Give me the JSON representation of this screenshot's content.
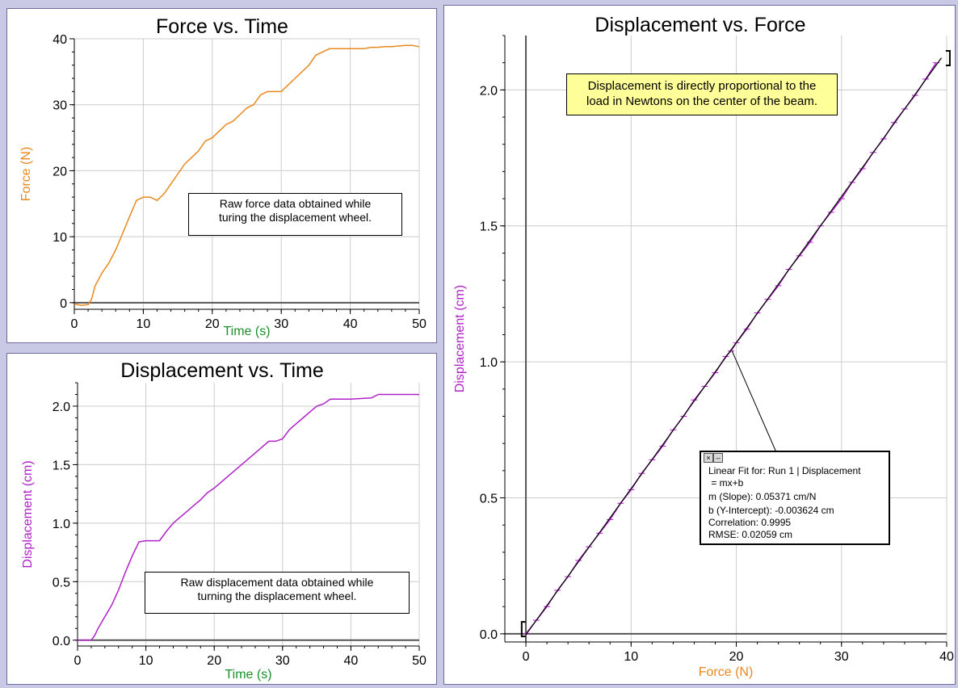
{
  "colors": {
    "force": "#e8891e",
    "displacement": "#b021c9",
    "fit": "#000000",
    "grid": "#cccccc",
    "note_yellow": "#ffff99",
    "background": "#c9c9e6"
  },
  "annotations": {
    "force_time": "Raw force data obtained while\nturing the displacement wheel.",
    "disp_time": "Raw displacement data obtained while\nturning the displacement wheel.",
    "disp_force": "Displacement is directly proportional to the\nload in Newtons on the center of the beam."
  },
  "fit_box": {
    "close_icon": "close-icon",
    "minimize_icon": "minimize-icon",
    "line1": "Linear Fit for: Run 1 | Displacement",
    "line2": " = mx+b",
    "slope": "m (Slope): 0.05371 cm/N",
    "intercept": "b (Y-Intercept): -0.003624 cm",
    "correlation": "Correlation: 0.9995",
    "rmse": "RMSE: 0.02059 cm"
  },
  "chart_data": [
    {
      "type": "line",
      "title": "Force vs. Time",
      "xlabel": "Time (s)",
      "ylabel": "Force (N)",
      "xlim": [
        0,
        50
      ],
      "ylim": [
        -1,
        40
      ],
      "xticks": [
        0,
        10,
        20,
        30,
        40,
        50
      ],
      "yticks": [
        0,
        10,
        20,
        30,
        40
      ],
      "grid": true,
      "series": [
        {
          "x": [
            0,
            1,
            2,
            2.5,
            3,
            4,
            5,
            6,
            7,
            8,
            9,
            10,
            11,
            12,
            13,
            14,
            15,
            16,
            17,
            18,
            19,
            20,
            21,
            22,
            23,
            24,
            25,
            26,
            27,
            28,
            29,
            30,
            31,
            32,
            33,
            34,
            35,
            36,
            37,
            38,
            39,
            40,
            41,
            42,
            43,
            44,
            45,
            46,
            47,
            48,
            49,
            50
          ],
          "y": [
            -0.2,
            -0.4,
            -0.3,
            0.5,
            2.5,
            4.5,
            6,
            8,
            10.5,
            13,
            15.5,
            16,
            16,
            15.5,
            16.5,
            18,
            19.5,
            21,
            22,
            23,
            24.5,
            25,
            26,
            27,
            27.5,
            28.5,
            29.5,
            30,
            31.5,
            32,
            32,
            32,
            33,
            34,
            35,
            36,
            37.5,
            38,
            38.5,
            38.5,
            38.5,
            38.5,
            38.5,
            38.5,
            38.7,
            38.7,
            38.8,
            38.8,
            38.9,
            39,
            39,
            38.8
          ]
        }
      ]
    },
    {
      "type": "line",
      "title": "Displacement vs. Time",
      "xlabel": "Time (s)",
      "ylabel": "Displacement (cm)",
      "xlim": [
        0,
        50
      ],
      "ylim": [
        -0.05,
        2.2
      ],
      "xticks": [
        0,
        10,
        20,
        30,
        40,
        50
      ],
      "yticks": [
        0.0,
        0.5,
        1.0,
        1.5,
        2.0
      ],
      "grid": true,
      "series": [
        {
          "x": [
            0,
            2,
            2.5,
            3,
            4,
            5,
            6,
            7,
            8,
            9,
            10,
            12,
            13,
            14,
            15,
            16,
            17,
            18,
            19,
            20,
            21,
            22,
            23,
            24,
            25,
            26,
            27,
            28,
            29,
            30,
            31,
            32,
            33,
            34,
            35,
            36,
            37,
            40,
            43,
            44,
            50
          ],
          "y": [
            0,
            0,
            0.04,
            0.1,
            0.2,
            0.3,
            0.43,
            0.58,
            0.72,
            0.84,
            0.85,
            0.85,
            0.93,
            1.0,
            1.05,
            1.1,
            1.15,
            1.2,
            1.26,
            1.3,
            1.35,
            1.4,
            1.45,
            1.5,
            1.55,
            1.6,
            1.65,
            1.7,
            1.7,
            1.72,
            1.8,
            1.85,
            1.9,
            1.95,
            2.0,
            2.02,
            2.06,
            2.06,
            2.07,
            2.1,
            2.1
          ]
        }
      ]
    },
    {
      "type": "scatter",
      "title": "Displacement vs. Force",
      "xlabel": "Force (N)",
      "ylabel": "Displacement (cm)",
      "xlim": [
        -2,
        40
      ],
      "ylim": [
        -0.03,
        2.2
      ],
      "xticks": [
        0,
        10,
        20,
        30,
        40
      ],
      "yticks": [
        0.0,
        0.5,
        1.0,
        1.5,
        2.0
      ],
      "grid": true,
      "series": [
        {
          "x": [
            0,
            1,
            2,
            3,
            4,
            5,
            6,
            7,
            8,
            9,
            10,
            11,
            12,
            13,
            14,
            15,
            16,
            17,
            18,
            19,
            19.5,
            20,
            21,
            22,
            23,
            24,
            25,
            26,
            27,
            28,
            29,
            30,
            31,
            32,
            33,
            34,
            35,
            36,
            37,
            38,
            39
          ],
          "y": [
            0,
            0.05,
            0.1,
            0.16,
            0.21,
            0.27,
            0.32,
            0.37,
            0.42,
            0.48,
            0.53,
            0.59,
            0.64,
            0.69,
            0.75,
            0.8,
            0.86,
            0.91,
            0.96,
            1.02,
            1.04,
            1.07,
            1.12,
            1.18,
            1.23,
            1.28,
            1.34,
            1.39,
            1.44,
            1.5,
            1.55,
            1.6,
            1.66,
            1.71,
            1.77,
            1.82,
            1.88,
            1.93,
            1.98,
            2.04,
            2.1
          ]
        },
        {
          "type": "line",
          "x": [
            0,
            39.5
          ],
          "y": [
            -0.003624,
            2.118
          ]
        }
      ]
    }
  ]
}
